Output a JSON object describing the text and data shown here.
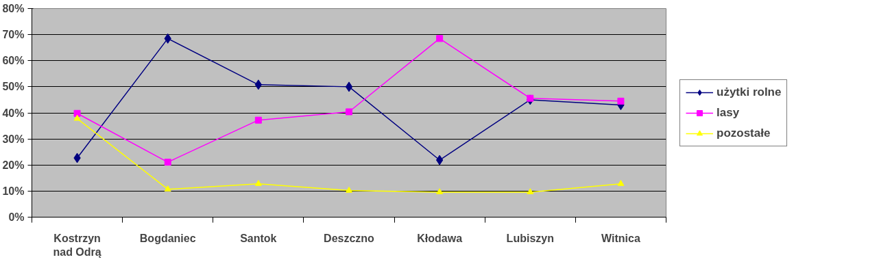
{
  "chart_data": {
    "type": "line",
    "categories": [
      "Kostrzyn nad Odrą",
      "Bogdaniec",
      "Santok",
      "Deszczno",
      "Kłodawa",
      "Lubiszyn",
      "Witnica"
    ],
    "series": [
      {
        "name": "użytki rolne",
        "color": "#000080",
        "marker": "diamond",
        "values": [
          22.7,
          68.5,
          50.8,
          50,
          21.9,
          45,
          43
        ]
      },
      {
        "name": "lasy",
        "color": "#ff00ff",
        "marker": "square",
        "values": [
          39.8,
          21.1,
          37.2,
          40.4,
          68.5,
          45.6,
          44.5
        ]
      },
      {
        "name": "pozostałe",
        "color": "#ffff00",
        "marker": "triangle",
        "values": [
          37.8,
          10.7,
          12.8,
          10.2,
          9.6,
          9.6,
          12.8
        ]
      }
    ],
    "ylim": [
      0,
      80
    ],
    "yticks": [
      {
        "value": 0,
        "label": "0%"
      },
      {
        "value": 10,
        "label": "10%"
      },
      {
        "value": 20,
        "label": "20%"
      },
      {
        "value": 30,
        "label": "30%"
      },
      {
        "value": 40,
        "label": "40%"
      },
      {
        "value": 50,
        "label": "50%"
      },
      {
        "value": 60,
        "label": "60%"
      },
      {
        "value": 70,
        "label": "70%"
      },
      {
        "value": 80,
        "label": "80%"
      }
    ],
    "grid": "y",
    "legend": "right"
  }
}
